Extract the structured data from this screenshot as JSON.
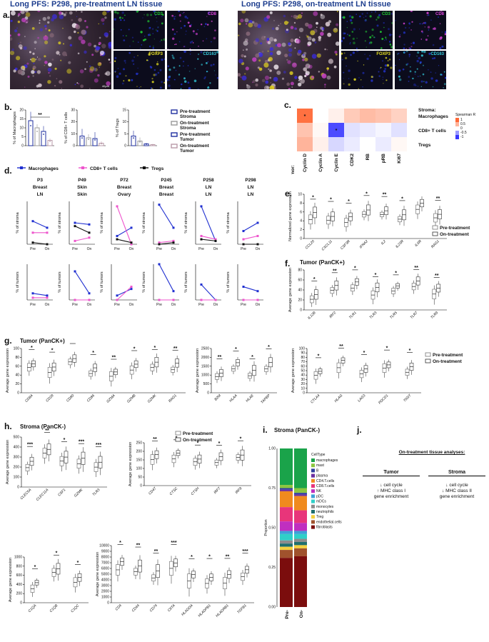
{
  "panel_a": {
    "label": "a.",
    "left_title_em": "Long PFS",
    "left_title_rest": ": P298, pre-treatment LN tissue",
    "right_title_em": "Long PFS",
    "right_title_rest": ": P298, on-treatment LN tissue",
    "markers": [
      "CD3",
      "CD8",
      "FOXP3",
      "CD163"
    ],
    "scale": "40µm",
    "marker_colors": {
      "CD3": "#22cc33",
      "CD8": "#dd44dd",
      "FOXP3": "#e8e020",
      "CD163": "#33ccdd"
    }
  },
  "panel_b": {
    "label": "b.",
    "plots": [
      {
        "ylabel": "% of Macrophages",
        "yticks": [
          "0",
          "5",
          "10",
          "15",
          "20"
        ],
        "sig": "**"
      },
      {
        "ylabel": "% of CD8+ T cells",
        "yticks": [
          "0",
          "10",
          "20",
          "30"
        ],
        "sig": ""
      },
      {
        "ylabel": "% of Tregs",
        "yticks": [
          "0",
          "5",
          "10",
          "15"
        ],
        "sig": ""
      }
    ],
    "legend": [
      {
        "label": "Pre-treatment Stroma",
        "color": "#1f2f9f"
      },
      {
        "label": "On-treatment Stroma",
        "color": "#999999"
      },
      {
        "label": "Pre-treatment Tumor",
        "color": "#1f2f9f"
      },
      {
        "label": "On-treatment Tumor",
        "color": "#b99aa8"
      }
    ]
  },
  "panel_c": {
    "label": "c.",
    "stroma_label": "Stroma:",
    "tumor_label": "Tumor:",
    "rows": [
      "Macrophages",
      "CD8+ T cells",
      "Tregs"
    ],
    "cols": [
      "Cyclin D",
      "Cyclin A",
      "Cyclin E",
      "CDK2",
      "RB",
      "pRB",
      "Ki67"
    ],
    "values": [
      [
        0.95,
        0.0,
        0.1,
        0.35,
        0.45,
        0.4,
        0.3
      ],
      [
        0.4,
        0.05,
        -0.9,
        -0.15,
        -0.1,
        -0.05,
        -0.15
      ],
      [
        0.5,
        0.1,
        -0.2,
        -0.1,
        0.0,
        -0.1,
        0.05
      ]
    ],
    "stars": [
      [
        0,
        0
      ],
      [
        1,
        2
      ]
    ],
    "star": "*",
    "scale_title": "Spearman R",
    "scale_ticks": [
      "1",
      "0.5",
      "0",
      "-0.5",
      "-1"
    ]
  },
  "panel_d": {
    "label": "d.",
    "legend": [
      {
        "label": "Macrophages",
        "color": "#1f2fd0"
      },
      {
        "label": "CD8+ T cells",
        "color": "#ee55cc"
      },
      {
        "label": "Tregs",
        "color": "#111111"
      }
    ],
    "patients": [
      {
        "id": "P3",
        "l1": "Breast",
        "l2": "LN"
      },
      {
        "id": "P49",
        "l1": "Skin",
        "l2": "Skin"
      },
      {
        "id": "P72",
        "l1": "Breast",
        "l2": "Ovary"
      },
      {
        "id": "P245",
        "l1": "Breast",
        "l2": "Breast"
      },
      {
        "id": "P258",
        "l1": "LN",
        "l2": "LN"
      },
      {
        "id": "P298",
        "l1": "LN",
        "l2": "LN"
      }
    ],
    "ylabel_top": "% of stroma",
    "ylabel_bottom": "% of tumors",
    "xticks": [
      "Pre",
      "On"
    ]
  },
  "panel_e": {
    "label": "e.",
    "ylabel": "Normalized gene expression",
    "genes": [
      "CCL20",
      "CXCL11",
      "CSF3R",
      "IFNA2",
      "IL2",
      "IL23R",
      "IL6R",
      "RAG1"
    ],
    "sig": [
      "*",
      "*",
      "*",
      "*",
      "**",
      "*",
      "*",
      "**"
    ],
    "legend": [
      "Pre-treatment",
      "On-treatment"
    ]
  },
  "panel_f": {
    "label": "f.",
    "title": "Tumor (PanCK+)",
    "ylabel": "Average gene expression",
    "genes": [
      "IL12B",
      "IRF2",
      "TLR1",
      "TLR3",
      "TLR5",
      "TLR7",
      "TLR9"
    ],
    "sig": [
      "*",
      "**",
      "*",
      "*",
      "*",
      "**",
      "**"
    ]
  },
  "panel_g": {
    "label": "g.",
    "title": "Tumor (PanCK+)",
    "ylabel": "Average gene expression",
    "genes1": [
      "CD8A",
      "CD28",
      "CD80",
      "CD86",
      "GZMA",
      "GZMB",
      "GZMK",
      "RAG1"
    ],
    "sig1": [
      "*",
      "*",
      "*",
      "*",
      "**",
      "*",
      "*",
      "**"
    ],
    "genes2": [
      "B2M",
      "HLAA",
      "HLAE",
      "TAPBP"
    ],
    "sig2": [
      "**",
      "*",
      "*",
      "*"
    ],
    "genes3": [
      "CTLA4",
      "HLAG",
      "LAG3",
      "PDCD1",
      "TIGIT"
    ],
    "sig3": [
      "*",
      "**",
      "*",
      "*",
      "*"
    ],
    "legend": [
      "Pre-treatment",
      "On-treatment"
    ]
  },
  "panel_h": {
    "label": "h.",
    "title": "Stroma (PanCK-)",
    "ylabel": "Average gene expression",
    "genes1": [
      "CLEC5A",
      "CLEC11A",
      "CSF1",
      "GZMK",
      "TLR3"
    ],
    "sig1": [
      "***",
      "**",
      "*",
      "***",
      "***"
    ],
    "genes2": [
      "CD47",
      "CTSC",
      "CTSH",
      "IRF7",
      "IRF8"
    ],
    "sig2": [
      "**",
      "*",
      "*",
      "*",
      "*"
    ],
    "genes3": [
      "C1QA",
      "C1QB",
      "C1QC"
    ],
    "sig3": [
      "*",
      "*",
      "*"
    ],
    "genes4": [
      "CD4",
      "CD44",
      "CD74",
      "CIITA",
      "HLADOA",
      "HLADPB1",
      "HLADRB1",
      "TGFB1"
    ],
    "sig4": [
      "*",
      "**",
      "**",
      "***",
      "*",
      "*",
      "**",
      "***"
    ],
    "legend": [
      "Pre-treatment",
      "On-treatment"
    ]
  },
  "panel_i": {
    "label": "i.",
    "title": "Stroma (PanCK-)",
    "legend_title": "CellType",
    "ylabel": "Proportion",
    "xticks": [
      "Pre-",
      "On-"
    ],
    "yticks": [
      "0.00",
      "0.25",
      "0.50",
      "0.75",
      "1.00"
    ],
    "celltypes": [
      {
        "name": "macrophages",
        "color": "#1aa34a"
      },
      {
        "name": "mast",
        "color": "#8cc63f"
      },
      {
        "name": "B",
        "color": "#2f3f9f"
      },
      {
        "name": "plasma",
        "color": "#6b2fa0"
      },
      {
        "name": "CD4.T.cells",
        "color": "#f08a1e"
      },
      {
        "name": "CD8.T.cells",
        "color": "#e8357a"
      },
      {
        "name": "NK",
        "color": "#c02fc0"
      },
      {
        "name": "pDC",
        "color": "#3ea0d8"
      },
      {
        "name": "mDCs",
        "color": "#2fd0c8"
      },
      {
        "name": "monocytes",
        "color": "#8c8c8c"
      },
      {
        "name": "neutrophils",
        "color": "#1f6f6f"
      },
      {
        "name": "Treg",
        "color": "#f4d03f"
      },
      {
        "name": "endothelial.cells",
        "color": "#a0522d"
      },
      {
        "name": "fibroblasts",
        "color": "#7b0d0d"
      }
    ],
    "pre": [
      0.23,
      0.02,
      0.01,
      0.01,
      0.1,
      0.09,
      0.06,
      0.02,
      0.04,
      0.02,
      0.02,
      0.02,
      0.05,
      0.31
    ],
    "on": [
      0.25,
      0.03,
      0.01,
      0.01,
      0.09,
      0.08,
      0.05,
      0.02,
      0.03,
      0.02,
      0.02,
      0.02,
      0.05,
      0.32
    ]
  },
  "panel_j": {
    "label": "j.",
    "title": "On-treatment tissue analyses:",
    "tumor_header": "Tumor",
    "stroma_header": "Stroma",
    "tumor_lines": [
      "↓ cell cycle",
      "↑ MHC class I",
      "gene enrichment"
    ],
    "stroma_lines": [
      "↓ cell cycle",
      "↓ MHC class II",
      "gene enrichment"
    ]
  }
}
